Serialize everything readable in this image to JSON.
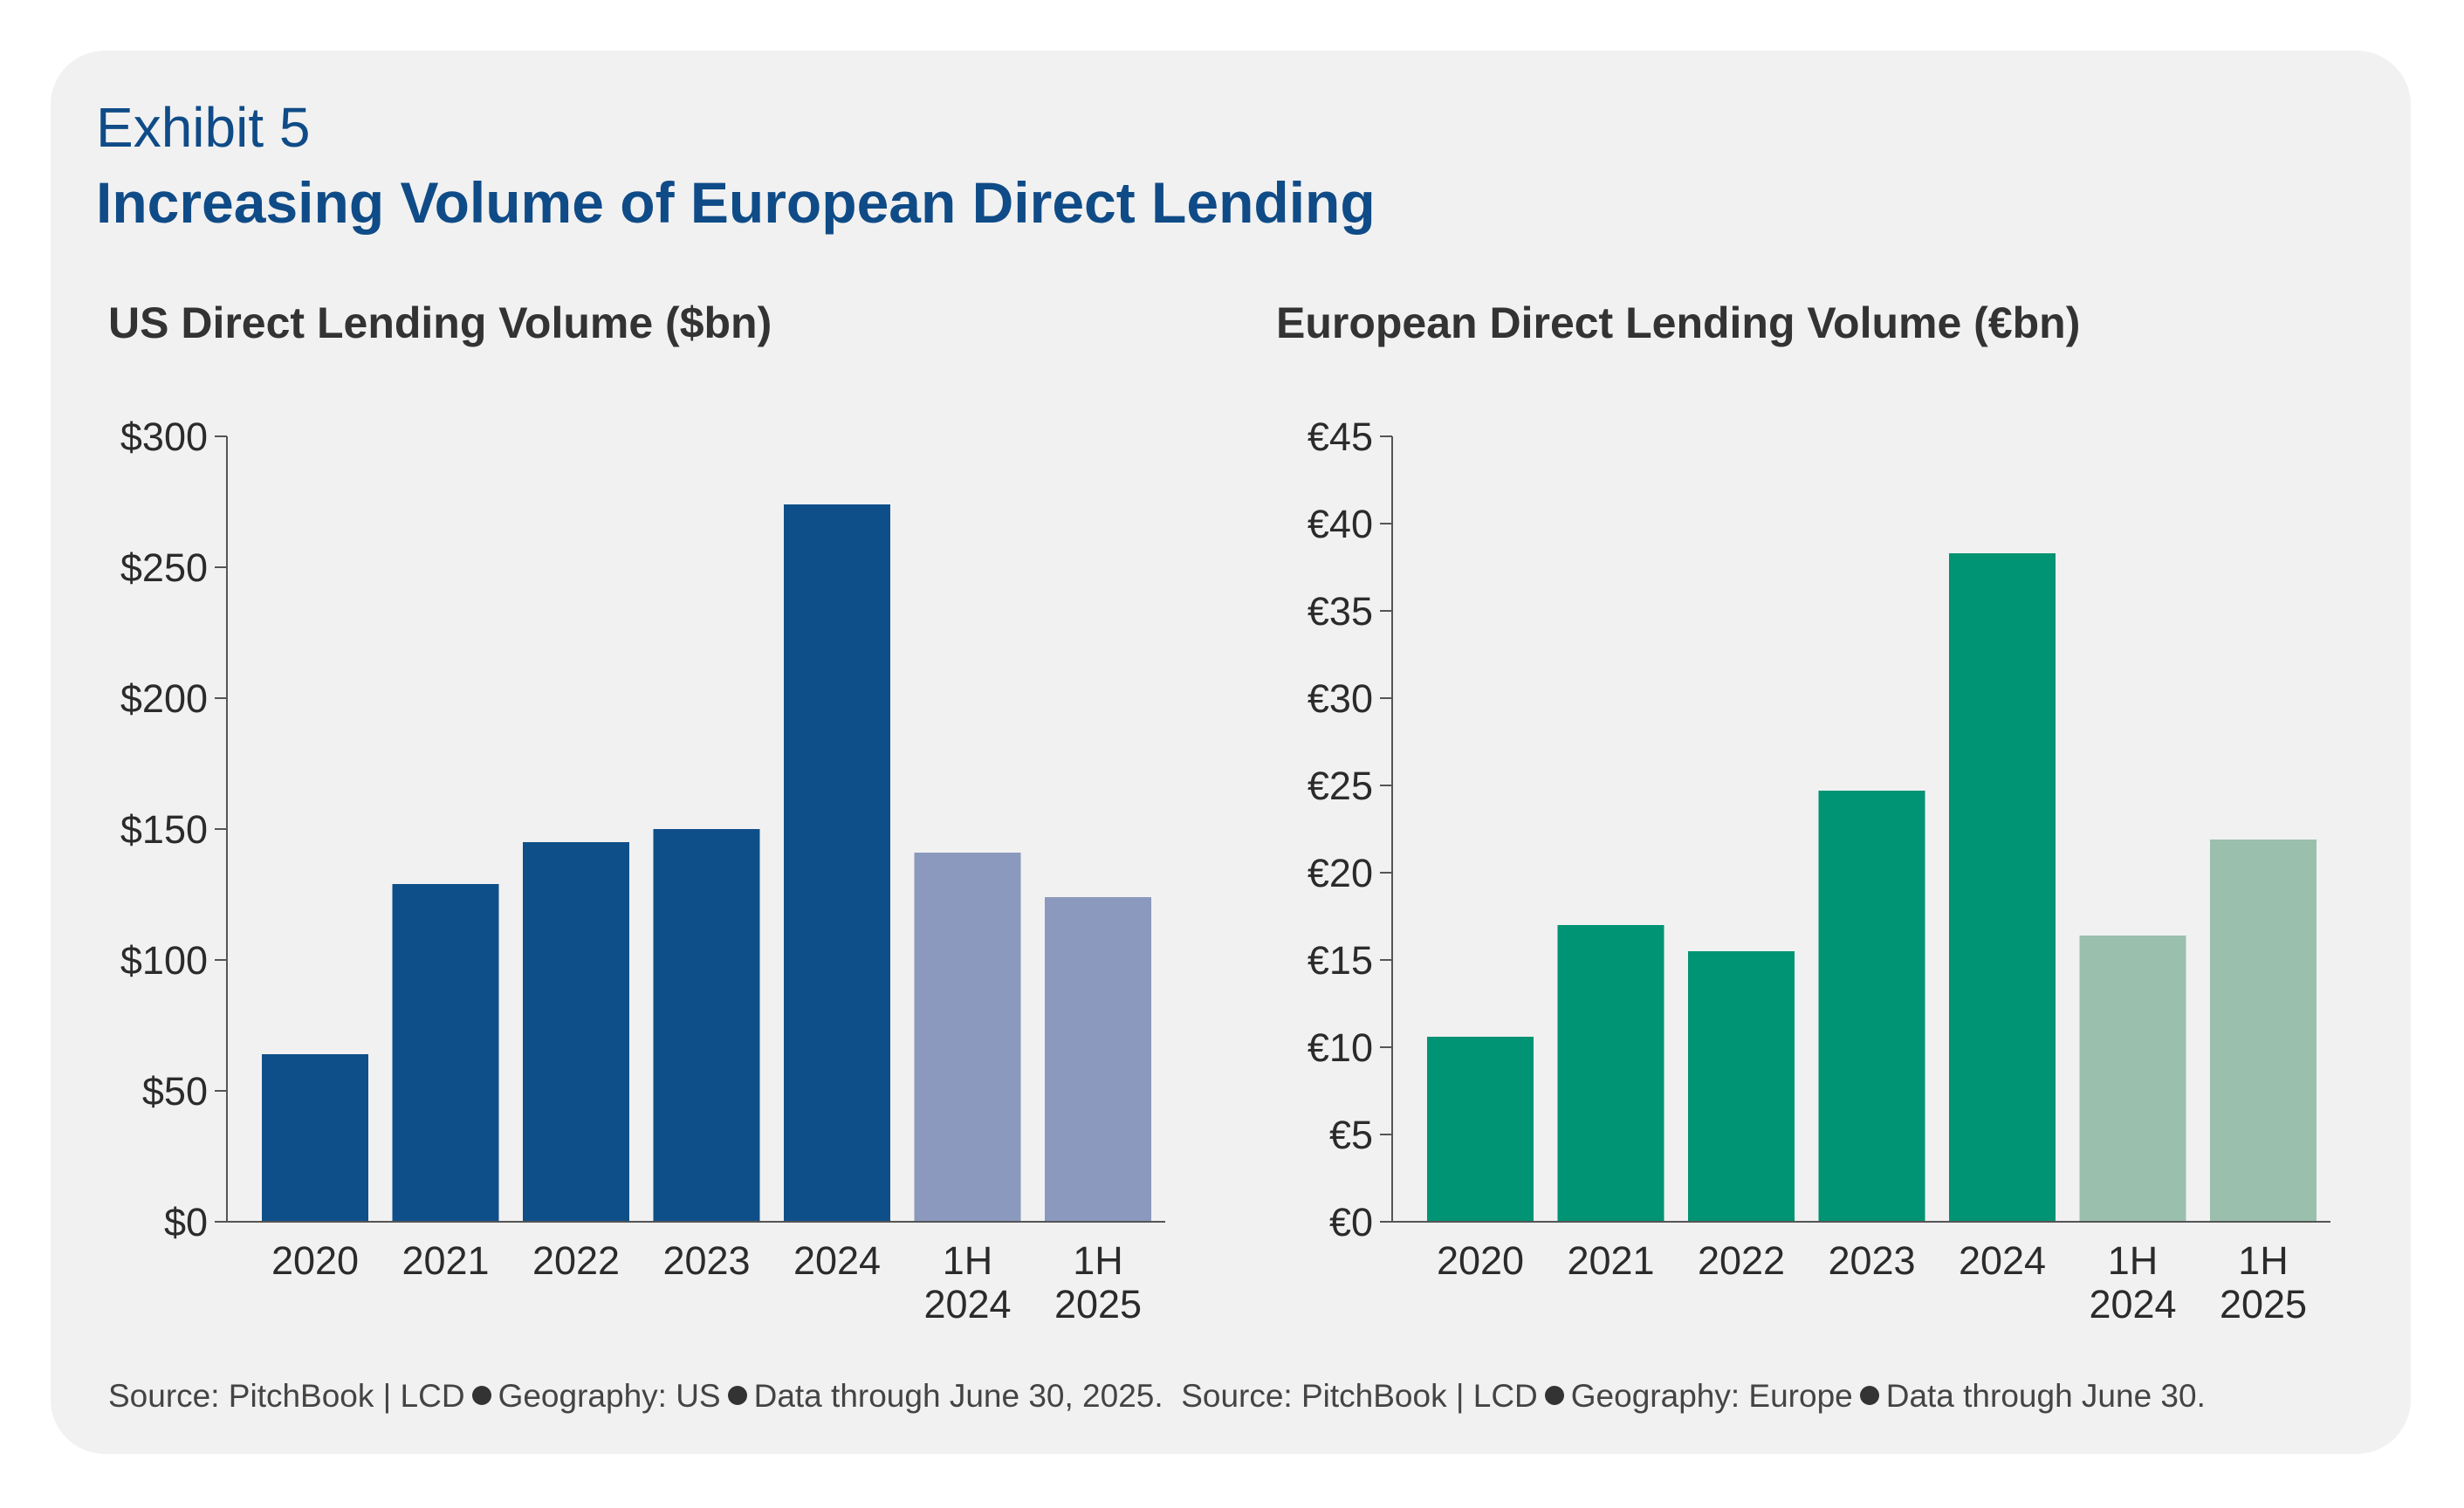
{
  "exhibit_label": "Exhibit 5",
  "title": "Increasing Volume of European Direct Lending",
  "colors": {
    "panel_bg": "#f1f1f1",
    "title": "#0f4b87",
    "us_full_year": "#0f4f89",
    "us_half_year": "#8a99bd",
    "eu_full_year": "#009374",
    "eu_half_year": "#9bbfad"
  },
  "chart_data": [
    {
      "type": "bar",
      "title": "US Direct Lending Volume ($bn)",
      "xlabel": "",
      "ylabel": "",
      "categories": [
        "2020",
        "2021",
        "2022",
        "2023",
        "2024",
        "1H 2024",
        "1H 2025"
      ],
      "category_lines": [
        [
          "2020"
        ],
        [
          "2021"
        ],
        [
          "2022"
        ],
        [
          "2023"
        ],
        [
          "2024"
        ],
        [
          "1H",
          "2024"
        ],
        [
          "1H",
          "2025"
        ]
      ],
      "values": [
        64,
        129,
        145,
        150,
        274,
        141,
        124
      ],
      "highlight": [
        false,
        false,
        false,
        false,
        false,
        true,
        true
      ],
      "ylim": [
        0,
        300
      ],
      "yticks": [
        0,
        50,
        100,
        150,
        200,
        250,
        300
      ],
      "ytick_labels": [
        "$0",
        "$50",
        "$100",
        "$150",
        "$200",
        "$250",
        "$300"
      ],
      "grid": false,
      "legend": "none"
    },
    {
      "type": "bar",
      "title": "European Direct Lending Volume (€bn)",
      "xlabel": "",
      "ylabel": "",
      "categories": [
        "2020",
        "2021",
        "2022",
        "2023",
        "2024",
        "1H 2024",
        "1H 2025"
      ],
      "category_lines": [
        [
          "2020"
        ],
        [
          "2021"
        ],
        [
          "2022"
        ],
        [
          "2023"
        ],
        [
          "2024"
        ],
        [
          "1H",
          "2024"
        ],
        [
          "1H",
          "2025"
        ]
      ],
      "values": [
        10.6,
        17.0,
        15.5,
        24.7,
        38.3,
        16.4,
        21.9
      ],
      "highlight": [
        false,
        false,
        false,
        false,
        false,
        true,
        true
      ],
      "ylim": [
        0,
        45
      ],
      "yticks": [
        0,
        5,
        10,
        15,
        20,
        25,
        30,
        35,
        40,
        45
      ],
      "ytick_labels": [
        "€0",
        "€5",
        "€10",
        "€15",
        "€20",
        "€25",
        "€30",
        "€35",
        "€40",
        "€45"
      ],
      "grid": false,
      "legend": "none"
    }
  ],
  "source": {
    "us_prefix": "Source: PitchBook | LCD",
    "us_geo": "Geography: US",
    "us_data": "Data through June 30, 2025.",
    "eu_prefix": "Source: PitchBook | LCD",
    "eu_geo": "Geography: Europe",
    "eu_data": "Data through June 30."
  }
}
